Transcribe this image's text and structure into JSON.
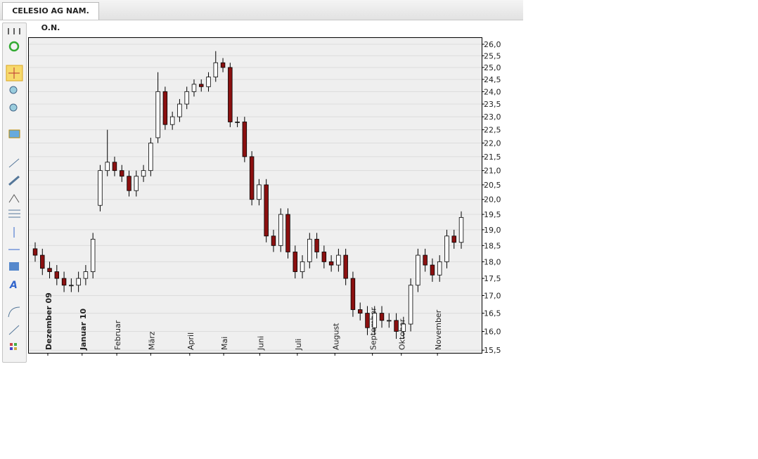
{
  "tab": {
    "title": "CELESIO AG NAM. O.N."
  },
  "chart_data": {
    "type": "candlestick",
    "log_scale": true,
    "grid": true,
    "up_color": "#ffffff",
    "down_color": "#8b1010",
    "categories": [
      null,
      null,
      null,
      null,
      null,
      null,
      null,
      null,
      null,
      null,
      null,
      null,
      null,
      null,
      null,
      null,
      null,
      null,
      null,
      null,
      null,
      null,
      null,
      null,
      null,
      null,
      null,
      null,
      null,
      null,
      null,
      null,
      null,
      null,
      null,
      null,
      null,
      null,
      null,
      null,
      null,
      null,
      null,
      null,
      null,
      null,
      null,
      null,
      null,
      null,
      null,
      null,
      null,
      null,
      null,
      null,
      null,
      null,
      null,
      null
    ],
    "open": [
      18.4,
      18.2,
      17.8,
      17.7,
      17.5,
      17.3,
      17.3,
      17.5,
      17.7,
      19.8,
      21.0,
      21.3,
      21.0,
      20.8,
      20.3,
      20.8,
      21.0,
      22.2,
      24.0,
      22.7,
      23.0,
      23.5,
      24.0,
      24.3,
      24.2,
      24.6,
      25.2,
      25.0,
      22.8,
      22.8,
      21.5,
      20.0,
      20.5,
      18.8,
      18.5,
      19.5,
      18.3,
      17.7,
      18.0,
      18.7,
      18.3,
      18.0,
      17.9,
      18.2,
      17.5,
      16.6,
      16.5,
      16.1,
      16.5,
      16.3,
      16.3,
      16.0,
      16.2,
      17.3,
      18.2,
      17.9,
      17.6,
      18.0,
      18.8,
      18.6
    ],
    "high": [
      18.6,
      18.4,
      18.0,
      17.9,
      17.7,
      17.5,
      17.7,
      17.9,
      18.9,
      21.2,
      22.5,
      21.5,
      21.2,
      21.0,
      21.0,
      21.2,
      22.2,
      24.8,
      24.2,
      23.2,
      23.7,
      24.2,
      24.5,
      24.5,
      24.8,
      25.7,
      25.4,
      25.2,
      23.0,
      23.0,
      21.7,
      20.7,
      20.7,
      19.0,
      19.7,
      19.7,
      18.5,
      18.2,
      18.9,
      18.9,
      18.5,
      18.2,
      18.4,
      18.4,
      17.7,
      16.8,
      16.7,
      16.7,
      16.7,
      16.5,
      16.5,
      16.4,
      17.5,
      18.4,
      18.4,
      18.1,
      18.2,
      19.0,
      19.0,
      19.6
    ],
    "low": [
      18.0,
      17.6,
      17.5,
      17.3,
      17.1,
      17.1,
      17.1,
      17.3,
      17.5,
      19.6,
      20.8,
      20.8,
      20.6,
      20.1,
      20.1,
      20.6,
      20.8,
      22.0,
      22.5,
      22.5,
      22.8,
      23.3,
      23.8,
      24.0,
      24.0,
      24.4,
      24.8,
      22.6,
      22.6,
      21.3,
      19.8,
      19.8,
      18.6,
      18.3,
      18.3,
      18.1,
      17.5,
      17.5,
      17.8,
      18.1,
      17.8,
      17.7,
      17.7,
      17.3,
      16.4,
      16.3,
      15.9,
      15.9,
      16.1,
      16.1,
      15.8,
      15.8,
      16.0,
      17.1,
      17.7,
      17.4,
      17.4,
      17.8,
      18.4,
      18.4
    ],
    "close": [
      18.2,
      17.8,
      17.7,
      17.5,
      17.3,
      17.3,
      17.5,
      17.7,
      18.7,
      21.0,
      21.3,
      21.0,
      20.8,
      20.3,
      20.8,
      21.0,
      22.0,
      24.0,
      22.7,
      23.0,
      23.5,
      24.0,
      24.3,
      24.2,
      24.6,
      25.2,
      25.0,
      22.8,
      22.8,
      21.5,
      20.0,
      20.5,
      18.8,
      18.5,
      19.5,
      18.3,
      17.7,
      18.0,
      18.7,
      18.3,
      18.0,
      17.9,
      18.2,
      17.5,
      16.6,
      16.5,
      16.1,
      16.5,
      16.3,
      16.3,
      16.0,
      16.2,
      17.3,
      18.2,
      17.9,
      17.6,
      18.0,
      18.8,
      18.6,
      19.4
    ],
    "xticks": [
      {
        "value": 1.75,
        "label": "Dezember 09"
      },
      {
        "value": 6.5,
        "label": "Januar 10"
      },
      {
        "value": 11.3,
        "label": "Februar"
      },
      {
        "value": 16,
        "label": "März"
      },
      {
        "value": 21.4,
        "label": "April"
      },
      {
        "value": 26.1,
        "label": "Mai"
      },
      {
        "value": 31.1,
        "label": "Juni"
      },
      {
        "value": 36.3,
        "label": "Juli"
      },
      {
        "value": 41.5,
        "label": "August"
      },
      {
        "value": 46.7,
        "label": "September"
      },
      {
        "value": 50.7,
        "label": "Oktober"
      },
      {
        "value": 55.7,
        "label": "November"
      }
    ],
    "ylim": [
      15.43,
      26.31
    ],
    "yticks": [
      {
        "value": 15.5,
        "label": "15,5"
      },
      {
        "value": 16,
        "label": "16,0"
      },
      {
        "value": 16.5,
        "label": "16,5"
      },
      {
        "value": 17,
        "label": "17,0"
      },
      {
        "value": 17.5,
        "label": "17,5"
      },
      {
        "value": 18,
        "label": "18,0"
      },
      {
        "value": 18.5,
        "label": "18,5"
      },
      {
        "value": 19,
        "label": "19,0"
      },
      {
        "value": 19.5,
        "label": "19,5"
      },
      {
        "value": 20,
        "label": "20,0"
      },
      {
        "value": 20.5,
        "label": "20,5"
      },
      {
        "value": 21,
        "label": "21,0"
      },
      {
        "value": 21.5,
        "label": "21,5"
      },
      {
        "value": 22,
        "label": "22,0"
      },
      {
        "value": 22.5,
        "label": "22,5"
      },
      {
        "value": 23,
        "label": "23,0"
      },
      {
        "value": 23.5,
        "label": "23,5"
      },
      {
        "value": 24,
        "label": "24,0"
      },
      {
        "value": 24.5,
        "label": "24,5"
      },
      {
        "value": 25,
        "label": "25,0"
      },
      {
        "value": 25.5,
        "label": "25,5"
      },
      {
        "value": 26,
        "label": "26,0"
      }
    ]
  }
}
